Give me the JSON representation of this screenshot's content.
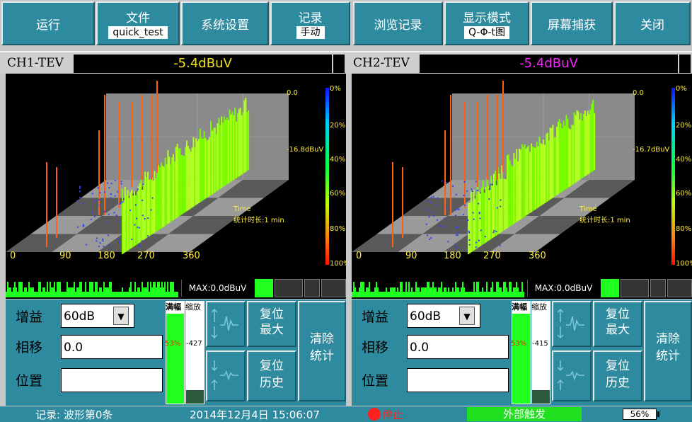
{
  "toolbar": {
    "run": "运行",
    "file_label": "文件",
    "file_value": "quick_test",
    "system_settings": "系统设置",
    "record_label": "记录",
    "record_value": "手动",
    "browse_records": "浏览记录",
    "display_mode_label": "显示模式",
    "display_mode_value": "Q-Φ-t图",
    "screen_capture": "屏幕捕获",
    "close": "关闭"
  },
  "channels": [
    {
      "name": "CH1-TEV",
      "value": "-5.4dBuV",
      "value_color": "#f0e020",
      "ref_top": "0.0",
      "ref_mid": "-16.8dBuV",
      "max": "MAX:0.0dBuV",
      "gain_label": "增益",
      "gain": "60dB",
      "phase_label": "相移",
      "phase": "0.0",
      "position_label": "位置",
      "position": "",
      "full_scale": "满幅",
      "zoom": "缩放",
      "meter_value": "53%",
      "zoom_value": "-427",
      "reset_max": [
        "复位",
        "最大"
      ],
      "reset_history": [
        "复位",
        "历史"
      ],
      "clear_stats": [
        "清除",
        "统计"
      ]
    },
    {
      "name": "CH2-TEV",
      "value": "-5.4dBuV",
      "value_color": "#ff20ff",
      "ref_top": "0.0",
      "ref_mid": "-16.7dBuV",
      "max": "MAX:0.0dBuV",
      "gain_label": "增益",
      "gain": "60dB",
      "phase_label": "相移",
      "phase": "0.0",
      "position_label": "位置",
      "position": "",
      "full_scale": "满幅",
      "zoom": "缩放",
      "meter_value": "53%",
      "zoom_value": "-415",
      "reset_max": [
        "复位",
        "最大"
      ],
      "reset_history": [
        "复位",
        "历史"
      ],
      "clear_stats": [
        "清除",
        "统计"
      ]
    }
  ],
  "plot_labels": {
    "x_ticks": [
      "0",
      "90",
      "180",
      "270",
      "360"
    ],
    "pct_ticks": [
      "0%",
      "20%",
      "40%",
      "60%",
      "80%",
      "100%"
    ],
    "time_label": "Time",
    "stat_duration": "统计时长:1 min"
  },
  "status": {
    "record_info": "记录: 波形第0条",
    "datetime": "2014年12月4日 15:06:07",
    "stop": "停止",
    "trigger": "外部触发",
    "battery": "56%"
  },
  "colors": {
    "button_bg": "#2e8a9e",
    "trigger_bg": "#20e020",
    "stop_red": "#ff2020",
    "level_green": "#20ff20"
  }
}
